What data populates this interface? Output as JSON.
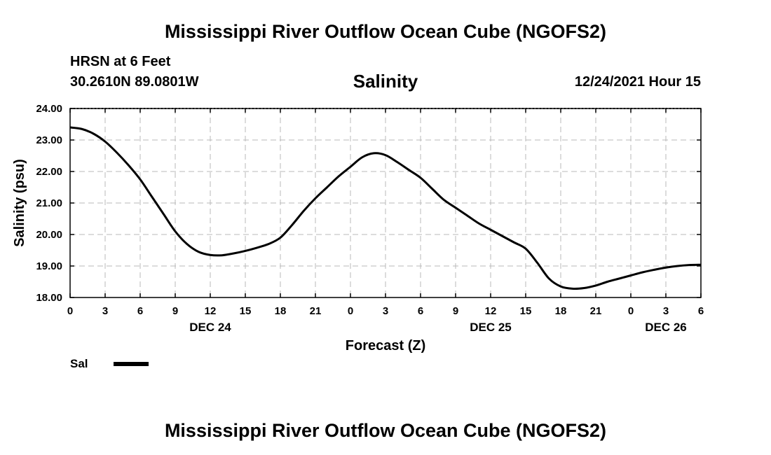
{
  "header": {
    "title": "Mississippi River Outflow Ocean Cube (NGOFS2)",
    "station": "HRSN at 6 Feet",
    "coordinates": "30.2610N  89.0801W",
    "run_time": "12/24/2021 Hour 15"
  },
  "footer": {
    "title": "Mississippi River Outflow Ocean Cube (NGOFS2)"
  },
  "chart_data": {
    "type": "line",
    "title": "Salinity",
    "xlabel": "Forecast (Z)",
    "ylabel": "Salinity (psu)",
    "xlim": [
      0,
      54
    ],
    "ylim": [
      18.0,
      24.0
    ],
    "x_ticks": [
      0,
      3,
      6,
      9,
      12,
      15,
      18,
      21,
      24,
      27,
      30,
      33,
      36,
      39,
      42,
      45,
      48,
      51,
      54
    ],
    "x_tick_labels": [
      "0",
      "3",
      "6",
      "9",
      "12",
      "15",
      "18",
      "21",
      "0",
      "3",
      "6",
      "9",
      "12",
      "15",
      "18",
      "21",
      "0",
      "3",
      "6"
    ],
    "y_ticks": [
      18,
      19,
      20,
      21,
      22,
      23,
      24
    ],
    "y_tick_labels": [
      "18.00",
      "19.00",
      "20.00",
      "21.00",
      "22.00",
      "23.00",
      "24.00"
    ],
    "date_labels": [
      {
        "x": 12,
        "label": "DEC 24"
      },
      {
        "x": 36,
        "label": "DEC 25"
      },
      {
        "x": 51,
        "label": "DEC 26"
      }
    ],
    "grid": true,
    "legend_position": "bottom-left",
    "series": [
      {
        "name": "Sal",
        "color": "#000000",
        "x": [
          0,
          1,
          2,
          3,
          4,
          5,
          6,
          7,
          8,
          9,
          10,
          11,
          12,
          13,
          14,
          15,
          16,
          17,
          18,
          19,
          20,
          21,
          22,
          23,
          24,
          25,
          26,
          27,
          28,
          29,
          30,
          31,
          32,
          33,
          34,
          35,
          36,
          37,
          38,
          39,
          40,
          41,
          42,
          43,
          44,
          45,
          46,
          47,
          48,
          49,
          50,
          51,
          52,
          53,
          54
        ],
        "values": [
          23.4,
          23.35,
          23.2,
          22.95,
          22.6,
          22.2,
          21.75,
          21.2,
          20.65,
          20.1,
          19.7,
          19.45,
          19.35,
          19.34,
          19.4,
          19.48,
          19.58,
          19.7,
          19.9,
          20.3,
          20.75,
          21.15,
          21.5,
          21.85,
          22.15,
          22.45,
          22.58,
          22.52,
          22.3,
          22.05,
          21.8,
          21.45,
          21.1,
          20.85,
          20.6,
          20.35,
          20.15,
          19.95,
          19.75,
          19.55,
          19.1,
          18.6,
          18.35,
          18.28,
          18.3,
          18.38,
          18.5,
          18.6,
          18.7,
          18.8,
          18.88,
          18.95,
          19.0,
          19.03,
          19.04
        ]
      }
    ]
  }
}
